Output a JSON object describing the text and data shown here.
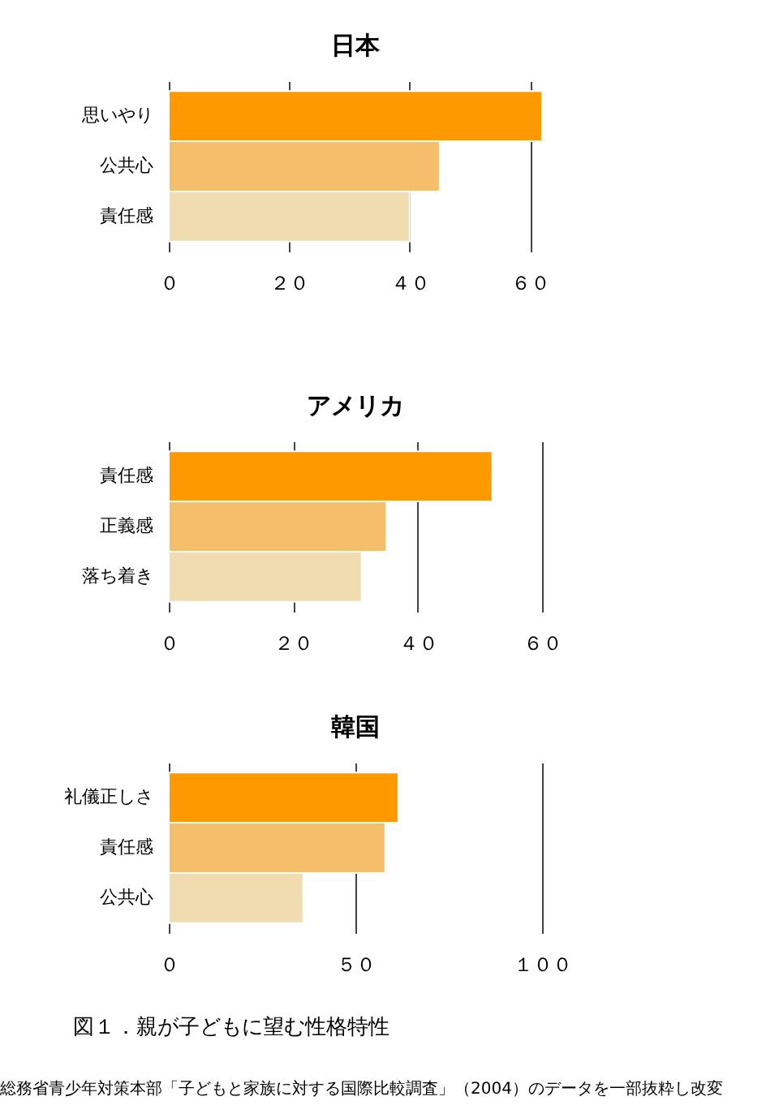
{
  "chart_data": [
    {
      "type": "bar",
      "orientation": "horizontal",
      "title": "日本",
      "categories": [
        "思いやり",
        "公共心",
        "責任感"
      ],
      "values": [
        62,
        45,
        40
      ],
      "colors": [
        "#ff9900",
        "#f5be6a",
        "#f0dcae"
      ],
      "xlim": [
        0,
        62
      ],
      "xticks": [
        {
          "value": 0,
          "label": "０"
        },
        {
          "value": 20,
          "label": "２０"
        },
        {
          "value": 40,
          "label": "４０"
        },
        {
          "value": 60,
          "label": "６０"
        }
      ],
      "grid": "x"
    },
    {
      "type": "bar",
      "orientation": "horizontal",
      "title": "アメリカ",
      "categories": [
        "責任感",
        "正義感",
        "落ち着き"
      ],
      "values": [
        52,
        35,
        31
      ],
      "colors": [
        "#ff9900",
        "#f5be6a",
        "#f0dcae"
      ],
      "xlim": [
        0,
        60
      ],
      "xticks": [
        {
          "value": 0,
          "label": "０"
        },
        {
          "value": 20,
          "label": "２０"
        },
        {
          "value": 40,
          "label": "４０"
        },
        {
          "value": 60,
          "label": "６０"
        }
      ],
      "grid": "x"
    },
    {
      "type": "bar",
      "orientation": "horizontal",
      "title": "韓国",
      "categories": [
        "礼儀正しさ",
        "責任感",
        "公共心"
      ],
      "values": [
        61.5,
        58,
        36
      ],
      "colors": [
        "#ff9900",
        "#f5be6a",
        "#f0dcae"
      ],
      "xlim": [
        0,
        100
      ],
      "xticks": [
        {
          "value": 0,
          "label": "０"
        },
        {
          "value": 50,
          "label": "５０"
        },
        {
          "value": 100,
          "label": "１００"
        }
      ],
      "grid": "x",
      "annotations": [
        "図１．親が子どもに望む性格特性",
        "総務省青少年対策本部「子どもと家族に対する国際比較調査」（2004）のデータを一部抜粋し改変"
      ]
    }
  ]
}
